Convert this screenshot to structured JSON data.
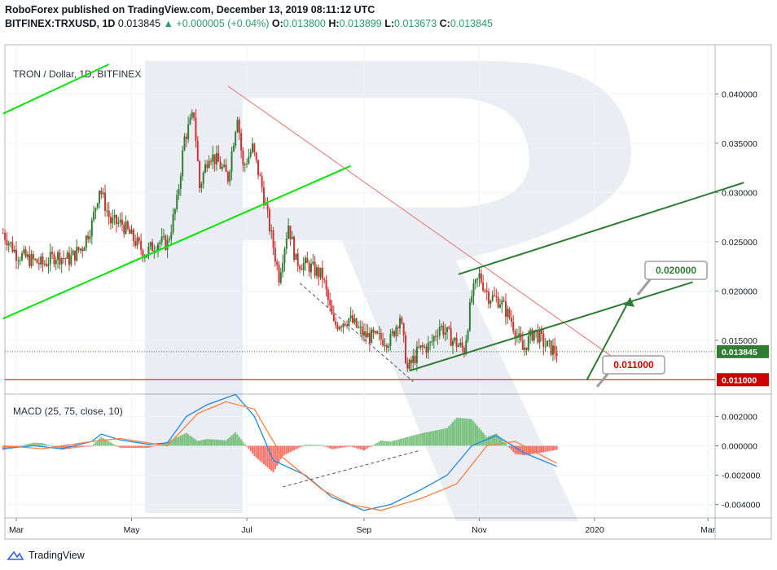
{
  "header": {
    "publisher_line": "RoboForex published on TradingView.com, December 13, 2019 08:11:12 UTC",
    "symbol": "BITFINEX:TRXUSD, 1D",
    "last": "0.013845",
    "change": "▲ +0.000005 (+0.04%)",
    "o_label": "O:",
    "o_value": "0.013800",
    "h_label": "H:",
    "h_value": "0.013899",
    "l_label": "L:",
    "l_value": "0.013673",
    "c_label": "C:",
    "c_value": "0.013845"
  },
  "footer": {
    "brand": "TradingView"
  },
  "chart_data": [
    {
      "type": "candlestick",
      "title": "TRON / Dollar, 1D, BITFINEX",
      "x_tick_labels": [
        "Mar",
        "May",
        "Jul",
        "Sep",
        "Nov",
        "2020",
        "Mar"
      ],
      "x_tick_dates": [
        "2019-03-01",
        "2019-05-01",
        "2019-07-01",
        "2019-09-01",
        "2019-11-01",
        "2020-01-01",
        "2020-03-01"
      ],
      "ylim": [
        0.0097,
        0.0435
      ],
      "y_tick_labels": [
        "0.040000",
        "0.035000",
        "0.030000",
        "0.025000",
        "0.020000",
        "0.015000"
      ],
      "y_ticks": [
        0.04,
        0.035,
        0.03,
        0.025,
        0.02,
        0.015
      ],
      "price_labels": [
        {
          "text": "0.013845",
          "value": 0.013845,
          "color": "#2e7d32"
        },
        {
          "text": "0.011000",
          "value": 0.011,
          "color": "#cc0000"
        }
      ],
      "callouts": [
        {
          "text": "0.020000",
          "color": "#2e7d32"
        },
        {
          "text": "0.011000",
          "color": "#cc0000"
        }
      ],
      "series_path": [
        [
          "2019-02-22",
          0.0259
        ],
        [
          "2019-03-01",
          0.0238
        ],
        [
          "2019-03-08",
          0.0232
        ],
        [
          "2019-03-15",
          0.0227
        ],
        [
          "2019-03-22",
          0.0236
        ],
        [
          "2019-03-29",
          0.0232
        ],
        [
          "2019-04-05",
          0.0245
        ],
        [
          "2019-04-10",
          0.0268
        ],
        [
          "2019-04-14",
          0.0305
        ],
        [
          "2019-04-20",
          0.027
        ],
        [
          "2019-04-26",
          0.0268
        ],
        [
          "2019-05-01",
          0.0255
        ],
        [
          "2019-05-08",
          0.0238
        ],
        [
          "2019-05-15",
          0.025
        ],
        [
          "2019-05-20",
          0.0248
        ],
        [
          "2019-05-25",
          0.029
        ],
        [
          "2019-05-29",
          0.0355
        ],
        [
          "2019-06-03",
          0.038
        ],
        [
          "2019-06-06",
          0.0305
        ],
        [
          "2019-06-11",
          0.034
        ],
        [
          "2019-06-16",
          0.033
        ],
        [
          "2019-06-21",
          0.0315
        ],
        [
          "2019-06-26",
          0.038
        ],
        [
          "2019-06-29",
          0.0325
        ],
        [
          "2019-07-04",
          0.0345
        ],
        [
          "2019-07-09",
          0.0305
        ],
        [
          "2019-07-13",
          0.0265
        ],
        [
          "2019-07-18",
          0.0215
        ],
        [
          "2019-07-23",
          0.0268
        ],
        [
          "2019-07-27",
          0.023
        ],
        [
          "2019-08-03",
          0.0225
        ],
        [
          "2019-08-10",
          0.0215
        ],
        [
          "2019-08-16",
          0.0165
        ],
        [
          "2019-08-24",
          0.0172
        ],
        [
          "2019-09-01",
          0.0155
        ],
        [
          "2019-09-08",
          0.0152
        ],
        [
          "2019-09-15",
          0.015
        ],
        [
          "2019-09-20",
          0.0175
        ],
        [
          "2019-09-24",
          0.012
        ],
        [
          "2019-09-30",
          0.014
        ],
        [
          "2019-10-06",
          0.0145
        ],
        [
          "2019-10-11",
          0.0165
        ],
        [
          "2019-10-18",
          0.015
        ],
        [
          "2019-10-24",
          0.014
        ],
        [
          "2019-10-28",
          0.0195
        ],
        [
          "2019-11-01",
          0.0215
        ],
        [
          "2019-11-06",
          0.0195
        ],
        [
          "2019-11-12",
          0.019
        ],
        [
          "2019-11-18",
          0.017
        ],
        [
          "2019-11-24",
          0.014
        ],
        [
          "2019-11-30",
          0.016
        ],
        [
          "2019-12-06",
          0.0145
        ],
        [
          "2019-12-12",
          0.0138
        ]
      ],
      "trend_lines": [
        {
          "color": "#00e600",
          "points": [
            [
              "2019-02-22",
              0.0172
            ],
            [
              "2019-08-25",
              0.0327
            ]
          ]
        },
        {
          "color": "#00e600",
          "points": [
            [
              "2019-02-22",
              0.038
            ],
            [
              "2019-04-19",
              0.043
            ]
          ]
        },
        {
          "color": "#e57373",
          "points": [
            [
              "2019-06-21",
              0.0408
            ],
            [
              "2020-01-15",
              0.0127
            ]
          ]
        },
        {
          "color": "#2e7d32",
          "points": [
            [
              "2019-09-25",
              0.0119
            ],
            [
              "2020-02-22",
              0.0209
            ]
          ]
        },
        {
          "color": "#2e7d32",
          "points": [
            [
              "2019-10-21",
              0.0217
            ],
            [
              "2020-03-20",
              0.031
            ]
          ]
        },
        {
          "color": "#2e7d32",
          "points": [
            [
              "2019-12-28",
              0.011
            ],
            [
              "2020-01-20",
              0.0193
            ]
          ]
        },
        {
          "color": "#555555",
          "dashed": true,
          "points": [
            [
              "2019-07-29",
              0.0208
            ],
            [
              "2019-09-27",
              0.0108
            ]
          ]
        }
      ]
    },
    {
      "type": "line",
      "title": "MACD (25, 75, close, 10)",
      "ylim": [
        -0.0048,
        0.0033
      ],
      "y_tick_labels": [
        "0.002000",
        "0.000000",
        "-0.002000",
        "-0.004000"
      ],
      "y_ticks": [
        0.002,
        0.0,
        -0.002,
        -0.004
      ],
      "series": [
        {
          "color": "#1e88e5",
          "points": [
            [
              "2019-02-22",
              -0.0002
            ],
            [
              "2019-03-10",
              0.0
            ],
            [
              "2019-03-25",
              -0.0002
            ],
            [
              "2019-04-10",
              0.0003
            ],
            [
              "2019-04-15",
              0.0008
            ],
            [
              "2019-04-25",
              0.0004
            ],
            [
              "2019-05-10",
              0.0001
            ],
            [
              "2019-05-20",
              0.0002
            ],
            [
              "2019-05-30",
              0.002
            ],
            [
              "2019-06-10",
              0.0028
            ],
            [
              "2019-06-25",
              0.0035
            ],
            [
              "2019-07-05",
              0.002
            ],
            [
              "2019-07-15",
              -0.001
            ],
            [
              "2019-08-01",
              -0.002
            ],
            [
              "2019-08-15",
              -0.0035
            ],
            [
              "2019-09-01",
              -0.0044
            ],
            [
              "2019-09-15",
              -0.004
            ],
            [
              "2019-10-01",
              -0.003
            ],
            [
              "2019-10-15",
              -0.002
            ],
            [
              "2019-10-28",
              0.0
            ],
            [
              "2019-11-10",
              0.0007
            ],
            [
              "2019-11-25",
              -0.0005
            ],
            [
              "2019-12-12",
              -0.0014
            ]
          ]
        },
        {
          "color": "#ff7f3f",
          "points": [
            [
              "2019-02-22",
              0.0
            ],
            [
              "2019-03-15",
              -0.0002
            ],
            [
              "2019-04-10",
              0.0003
            ],
            [
              "2019-04-25",
              0.0005
            ],
            [
              "2019-05-20",
              0.0
            ],
            [
              "2019-06-05",
              0.0022
            ],
            [
              "2019-06-20",
              0.003
            ],
            [
              "2019-07-05",
              0.0025
            ],
            [
              "2019-07-20",
              -0.0008
            ],
            [
              "2019-08-10",
              -0.003
            ],
            [
              "2019-08-25",
              -0.004
            ],
            [
              "2019-09-10",
              -0.0044
            ],
            [
              "2019-10-01",
              -0.0036
            ],
            [
              "2019-10-20",
              -0.0026
            ],
            [
              "2019-11-05",
              0.0
            ],
            [
              "2019-11-20",
              0.0003
            ],
            [
              "2019-12-12",
              -0.0012
            ]
          ]
        }
      ]
    }
  ]
}
